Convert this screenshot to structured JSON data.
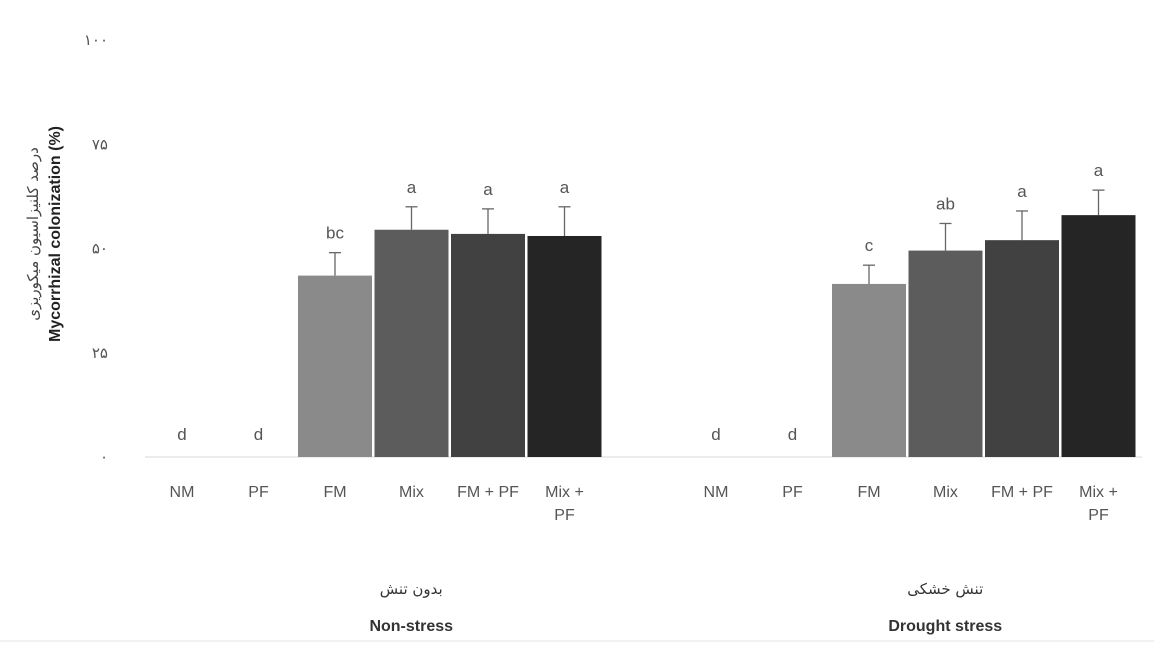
{
  "chart_data": {
    "type": "bar",
    "ylabel_fa": "درصد کلنیزاسیون میکوریزی",
    "ylabel": "Mycorrhizal colonization (%)",
    "ylim": [
      0,
      100
    ],
    "yticks": [
      "۰",
      "۲۵",
      "۵۰",
      "۷۵",
      "۱۰۰"
    ],
    "ytick_values": [
      0,
      25,
      50,
      75,
      100
    ],
    "grid": false,
    "groups": [
      {
        "label_fa": "بدون تنش",
        "label_en": "Non-stress",
        "bars": [
          {
            "category": [
              "NM"
            ],
            "value": 0,
            "error": 0,
            "letter": "d",
            "color": "#ffffff"
          },
          {
            "category": [
              "PF"
            ],
            "value": 0,
            "error": 0,
            "letter": "d",
            "color": "#ffffff"
          },
          {
            "category": [
              "FM"
            ],
            "value": 43.5,
            "error": 5.5,
            "letter": "bc",
            "color": "#8a8a8a"
          },
          {
            "category": [
              "Mix"
            ],
            "value": 54.5,
            "error": 5.5,
            "letter": "a",
            "color": "#5c5c5c"
          },
          {
            "category": [
              "FM + PF"
            ],
            "value": 53.5,
            "error": 6,
            "letter": "a",
            "color": "#414141"
          },
          {
            "category": [
              "Mix +",
              "PF"
            ],
            "value": 53,
            "error": 7,
            "letter": "a",
            "color": "#252525"
          }
        ]
      },
      {
        "label_fa": "تنش خشکی",
        "label_en": "Drought  stress",
        "bars": [
          {
            "category": [
              "NM"
            ],
            "value": 0,
            "error": 0,
            "letter": "d",
            "color": "#ffffff"
          },
          {
            "category": [
              "PF"
            ],
            "value": 0,
            "error": 0,
            "letter": "d",
            "color": "#ffffff"
          },
          {
            "category": [
              "FM"
            ],
            "value": 41.5,
            "error": 4.5,
            "letter": "c",
            "color": "#8a8a8a"
          },
          {
            "category": [
              "Mix"
            ],
            "value": 49.5,
            "error": 6.5,
            "letter": "ab",
            "color": "#5c5c5c"
          },
          {
            "category": [
              "FM + PF"
            ],
            "value": 52,
            "error": 7,
            "letter": "a",
            "color": "#414141"
          },
          {
            "category": [
              "Mix +",
              "PF"
            ],
            "value": 58,
            "error": 6,
            "letter": "a",
            "color": "#252525"
          }
        ]
      }
    ]
  }
}
